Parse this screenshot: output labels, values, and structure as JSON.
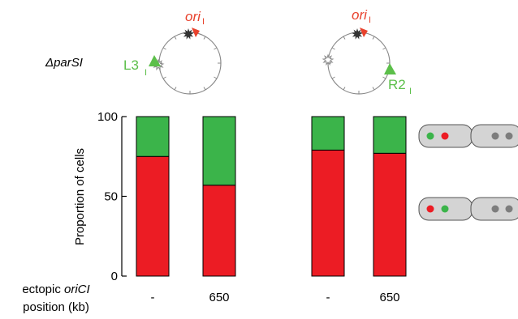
{
  "strain_label": "ΔparSI",
  "diagrams": [
    {
      "ori_label": "ori",
      "ori_sub": "I",
      "marker_label": "L3",
      "marker_sub": "I"
    },
    {
      "ori_label": "ori",
      "ori_sub": "I",
      "marker_label": "R2",
      "marker_sub": "I"
    }
  ],
  "x_axis_caption": {
    "line1_prefix": "ectopic ",
    "line1_italic": "oriCI",
    "line2": "position (kb)"
  },
  "colors": {
    "red": "#ec1c24",
    "green": "#3bb44a",
    "ori_red": "#e8412c",
    "marker_green": "#5cbf4a",
    "cell_fill": "#d4d4d4",
    "cell_dot_gray": "#7d7d7d"
  },
  "chart_data": {
    "type": "bar",
    "stacked": true,
    "ylabel": "Proportion of cells",
    "ylim": [
      0,
      100
    ],
    "yticks": [
      0,
      50,
      100
    ],
    "categories": [
      "-",
      "650",
      "-",
      "650"
    ],
    "groups": [
      "ΔparSI L3I",
      "ΔparSI R2I"
    ],
    "series": [
      {
        "color": "red",
        "values": [
          75,
          57,
          79,
          77
        ]
      },
      {
        "color": "green",
        "values": [
          25,
          43,
          21,
          23
        ]
      }
    ],
    "legend": {
      "placement": "right",
      "entries": [
        {
          "pattern": "green-red",
          "series_color": "green"
        },
        {
          "pattern": "red-green",
          "series_color": "red"
        }
      ]
    }
  }
}
